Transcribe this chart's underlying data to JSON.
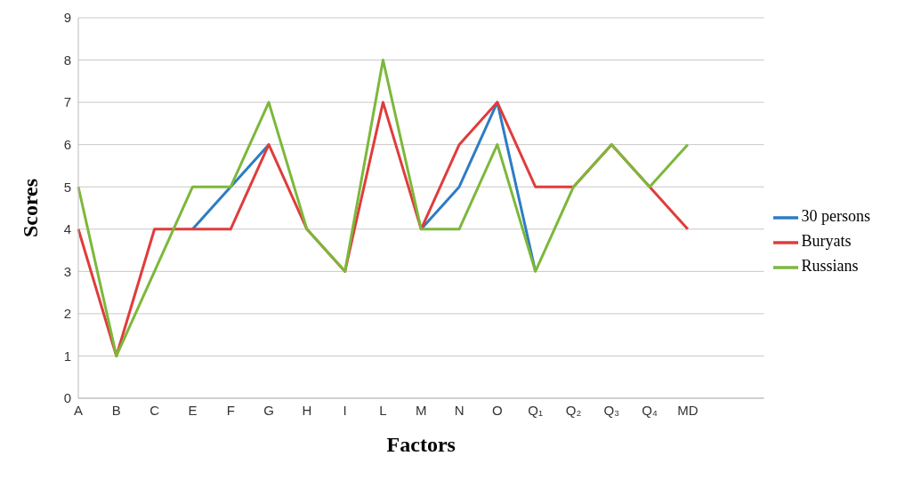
{
  "chart_data": {
    "type": "line",
    "xlabel": "Factors",
    "ylabel": "Scores",
    "categories": [
      "A",
      "B",
      "C",
      "E",
      "F",
      "G",
      "H",
      "I",
      "L",
      "M",
      "N",
      "O",
      "Q₁",
      "Q₂",
      "Q₃",
      "Q₄",
      "MD",
      null,
      null
    ],
    "series": [
      {
        "name": "30 persons",
        "color": "#2e7cc4",
        "values": [
          null,
          null,
          null,
          4,
          5,
          6,
          null,
          null,
          null,
          4,
          5,
          7,
          3,
          null,
          null,
          null,
          null,
          null,
          null
        ]
      },
      {
        "name": "Buryats",
        "color": "#e03c3c",
        "values": [
          4,
          1,
          4,
          4,
          4,
          6,
          4,
          3,
          7,
          4,
          6,
          7,
          5,
          5,
          6,
          5,
          4,
          null,
          null
        ]
      },
      {
        "name": "Russians",
        "color": "#7cb83a",
        "values": [
          5,
          1,
          3,
          5,
          5,
          7,
          4,
          3,
          8,
          4,
          4,
          6,
          3,
          5,
          6,
          5,
          6,
          null,
          null
        ]
      }
    ],
    "ylim": [
      0,
      9
    ],
    "yticks": [
      0,
      1,
      2,
      3,
      4,
      5,
      6,
      7,
      8,
      9
    ],
    "grid": "y",
    "legend": "right",
    "marker": "none",
    "line_style": "solid"
  }
}
